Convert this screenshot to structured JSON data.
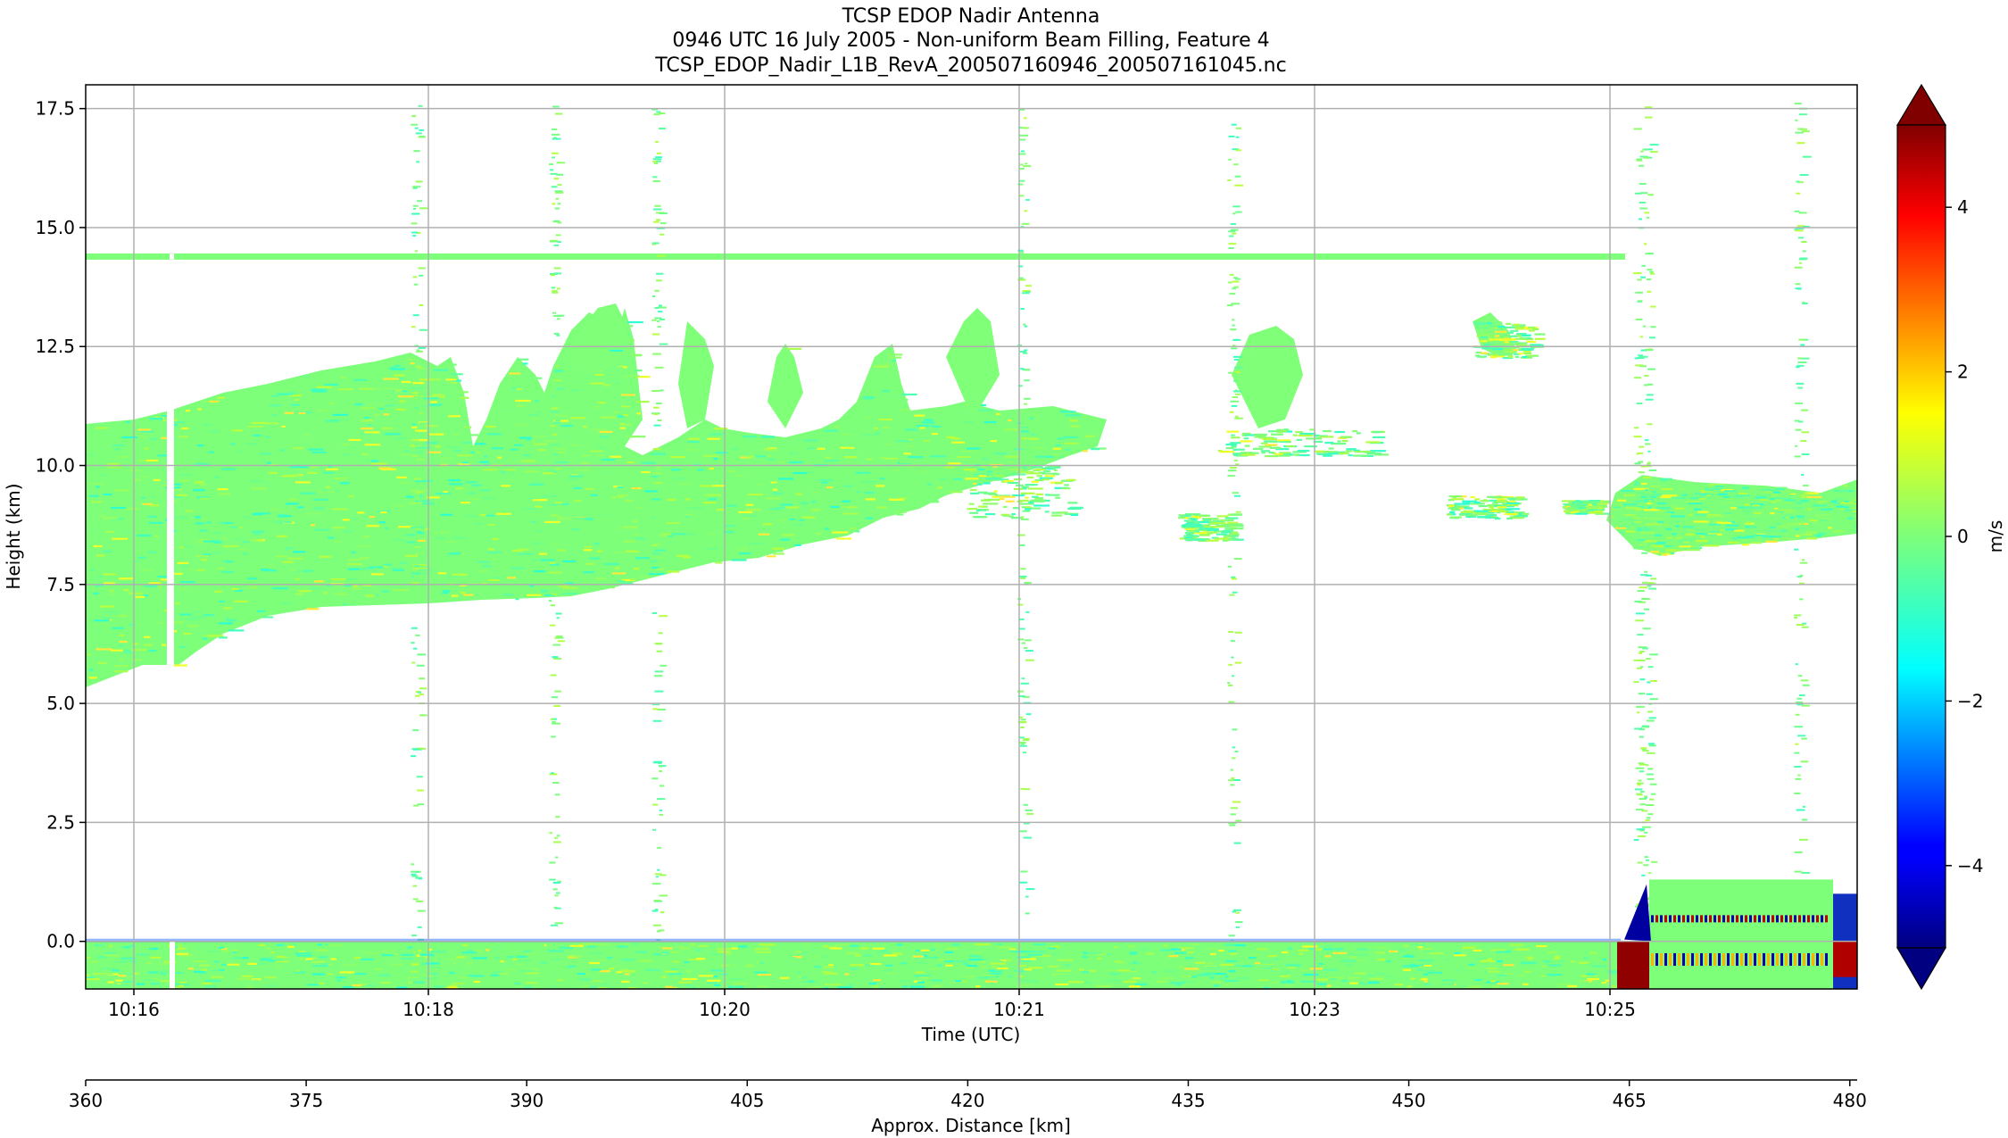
{
  "chart_data": {
    "type": "heatmap",
    "title_lines": [
      "TCSP EDOP Nadir Antenna",
      "0946 UTC 16 July 2005 - Non-uniform Beam Filling, Feature 4",
      "TCSP_EDOP_Nadir_L1B_RevA_200507160946_200507161045.nc"
    ],
    "xlabel": "Time (UTC)",
    "ylabel": "Height (km)",
    "x2label": "Approx. Distance [km]",
    "colorbar_label": "m/s",
    "x_ticks": [
      "10:16",
      "10:18",
      "10:20",
      "10:21",
      "10:23",
      "10:25"
    ],
    "y_ticks": [
      0.0,
      2.5,
      5.0,
      7.5,
      10.0,
      12.5,
      15.0,
      17.5
    ],
    "y_tick_labels": [
      "0.0",
      "2.5",
      "5.0",
      "7.5",
      "10.0",
      "12.5",
      "15.0",
      "17.5"
    ],
    "ylim": [
      -1.0,
      18.0
    ],
    "x2_ticks": [
      360,
      375,
      390,
      405,
      420,
      435,
      450,
      465,
      480
    ],
    "x2lim": [
      360,
      480.5
    ],
    "colorbar_ticks": [
      -4,
      -2,
      0,
      2,
      4
    ],
    "colorbar_tick_labels": [
      "−4",
      "−2",
      "0",
      "2",
      "4"
    ],
    "clim": [
      -5,
      5
    ],
    "colormap": "jet",
    "grid": true,
    "extend": "both",
    "features": {
      "surface_y": 0.0,
      "anvil_layer_height_km": 14.4,
      "main_cloud_base_km": [
        5.3,
        8.0
      ],
      "main_cloud_top_km": [
        11.0,
        13.3
      ],
      "ending_cloud_band_km": [
        8.0,
        9.8
      ]
    }
  }
}
